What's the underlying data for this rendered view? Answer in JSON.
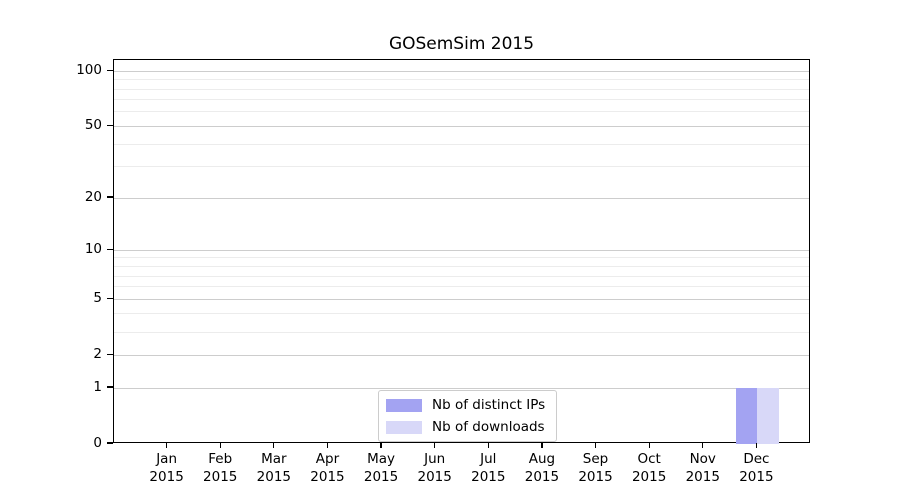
{
  "title": "GOSemSim 2015",
  "chart_data": {
    "type": "bar",
    "title": "GOSemSim 2015",
    "categories": [
      "Jan 2015",
      "Feb 2015",
      "Mar 2015",
      "Apr 2015",
      "May 2015",
      "Jun 2015",
      "Jul 2015",
      "Aug 2015",
      "Sep 2015",
      "Oct 2015",
      "Nov 2015",
      "Dec 2015"
    ],
    "series": [
      {
        "name": "Nb of distinct IPs",
        "color": "#a3a3f2",
        "values": [
          0,
          0,
          0,
          0,
          0,
          0,
          0,
          0,
          0,
          0,
          0,
          1
        ]
      },
      {
        "name": "Nb of downloads",
        "color": "#d8d8f8",
        "values": [
          0,
          0,
          0,
          0,
          0,
          0,
          0,
          0,
          0,
          0,
          0,
          1
        ]
      }
    ],
    "xlabel": "",
    "ylabel": "",
    "yscale": "log1p",
    "yticks": [
      0,
      1,
      2,
      5,
      10,
      20,
      50,
      100
    ],
    "minor_yticks": [
      3,
      4,
      6,
      7,
      8,
      9,
      30,
      40,
      60,
      70,
      80,
      90
    ],
    "ylim": [
      0,
      115
    ],
    "grid": true,
    "legend_position": "lower center inside plot",
    "colors": {
      "axis": "#000000",
      "grid_major": "#cdcdcd",
      "grid_minor": "#ececec",
      "legend_border": "#cccccc",
      "background": "#ffffff"
    }
  }
}
